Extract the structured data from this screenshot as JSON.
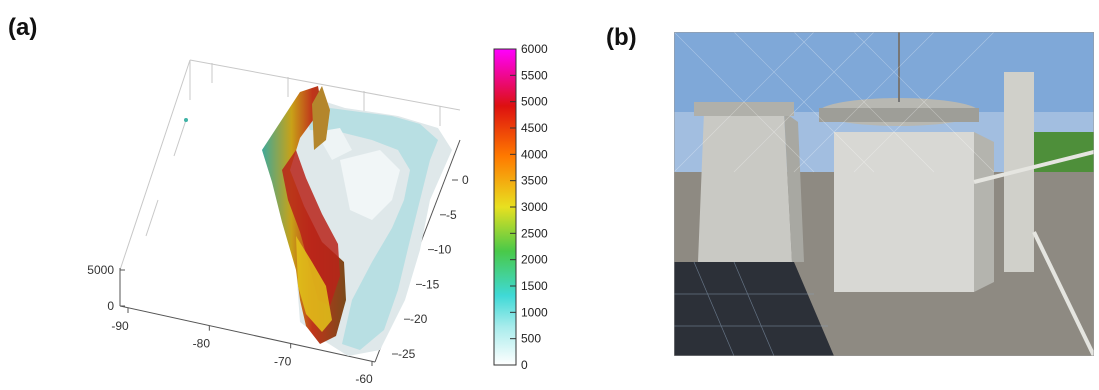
{
  "panels": {
    "a": {
      "label": "(a)"
    },
    "b": {
      "label": "(b)"
    }
  },
  "chart_data": {
    "type": "surface3d",
    "title": "",
    "x_ticks": [
      "-90",
      "-80",
      "-70",
      "-60"
    ],
    "y_ticks": [
      "0",
      "-5",
      "-10",
      "-15",
      "-20",
      "-25"
    ],
    "z_ticks": [
      "0",
      "5000"
    ],
    "colorbar": {
      "ticks": [
        "6000",
        "5500",
        "5000",
        "4500",
        "4000",
        "3500",
        "3000",
        "2500",
        "2000",
        "1500",
        "1000",
        "500",
        "0"
      ],
      "range": [
        0,
        6000
      ],
      "colormap": [
        "#ffffff",
        "#3fd9d6",
        "#49c949",
        "#e8e020",
        "#ff7a00",
        "#dd1010",
        "#ff00ff"
      ]
    }
  },
  "photo": {
    "sky_color": "#7fa8d8",
    "grass_color": "#4e8f3a",
    "enclosure_color": "#d8d8d4"
  }
}
